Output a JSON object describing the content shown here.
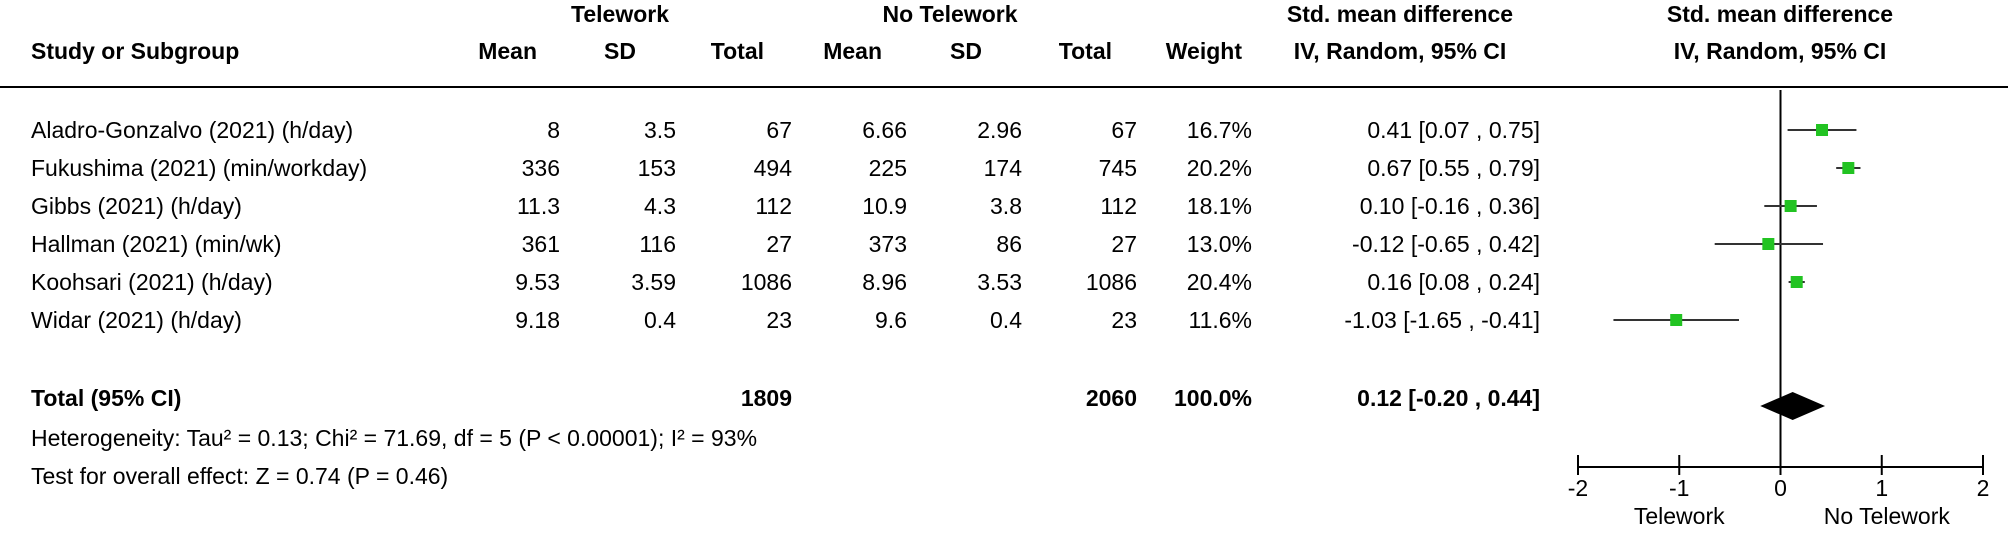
{
  "header": {
    "group1": "Telework",
    "group2": "No Telework",
    "col_study": "Study or Subgroup",
    "col_mean1": "Mean",
    "col_sd1": "SD",
    "col_total1": "Total",
    "col_mean2": "Mean",
    "col_sd2": "SD",
    "col_total2": "Total",
    "col_weight": "Weight",
    "effect_title": "Std. mean difference",
    "effect_method": "IV, Random, 95% CI",
    "plot_title": "Std. mean difference",
    "plot_method": "IV, Random, 95% CI"
  },
  "rows": [
    {
      "study": "Aladro-Gonzalvo (2021) (h/day)",
      "mean1": "8",
      "sd1": "3.5",
      "total1": "67",
      "mean2": "6.66",
      "sd2": "2.96",
      "total2": "67",
      "weight": "16.7%",
      "ci_text": "0.41 [0.07 , 0.75]"
    },
    {
      "study": "Fukushima (2021) (min/workday)",
      "mean1": "336",
      "sd1": "153",
      "total1": "494",
      "mean2": "225",
      "sd2": "174",
      "total2": "745",
      "weight": "20.2%",
      "ci_text": "0.67 [0.55 , 0.79]"
    },
    {
      "study": "Gibbs (2021) (h/day)",
      "mean1": "11.3",
      "sd1": "4.3",
      "total1": "112",
      "mean2": "10.9",
      "sd2": "3.8",
      "total2": "112",
      "weight": "18.1%",
      "ci_text": "0.10 [-0.16 , 0.36]"
    },
    {
      "study": "Hallman (2021) (min/wk)",
      "mean1": "361",
      "sd1": "116",
      "total1": "27",
      "mean2": "373",
      "sd2": "86",
      "total2": "27",
      "weight": "13.0%",
      "ci_text": "-0.12 [-0.65 , 0.42]"
    },
    {
      "study": "Koohsari (2021) (h/day)",
      "mean1": "9.53",
      "sd1": "3.59",
      "total1": "1086",
      "mean2": "8.96",
      "sd2": "3.53",
      "total2": "1086",
      "weight": "20.4%",
      "ci_text": "0.16 [0.08 , 0.24]"
    },
    {
      "study": "Widar (2021) (h/day)",
      "mean1": "9.18",
      "sd1": "0.4",
      "total1": "23",
      "mean2": "9.6",
      "sd2": "0.4",
      "total2": "23",
      "weight": "11.6%",
      "ci_text": "-1.03 [-1.65 , -0.41]"
    }
  ],
  "total": {
    "label": "Total (95% CI)",
    "total1": "1809",
    "total2": "2060",
    "weight": "100.0%",
    "ci_text": "0.12 [-0.20 , 0.44]"
  },
  "heterogeneity": "Heterogeneity: Tau² = 0.13; Chi² = 71.69, df = 5 (P < 0.00001); I² = 93%",
  "overall_effect": "Test for overall effect: Z = 0.74 (P = 0.46)",
  "colors": {
    "marker": "#22c322",
    "line": "#333333",
    "diamond": "#000000"
  },
  "chart_data": {
    "type": "scatter",
    "subtype": "forest-plot",
    "title": "Std. mean difference",
    "subtitle": "IV, Random, 95% CI",
    "xlim": [
      -2,
      2
    ],
    "x_ticks": [
      "-2",
      "-1",
      "0",
      "1",
      "2"
    ],
    "x_tick_values": [
      -2,
      -1,
      0,
      1,
      2
    ],
    "left_label": "Telework",
    "right_label": "No Telework",
    "studies": [
      {
        "study": "Aladro-Gonzalvo (2021) (h/day)",
        "smd": 0.41,
        "lower": 0.07,
        "upper": 0.75,
        "weight": 16.7
      },
      {
        "study": "Fukushima (2021) (min/workday)",
        "smd": 0.67,
        "lower": 0.55,
        "upper": 0.79,
        "weight": 20.2
      },
      {
        "study": "Gibbs (2021) (h/day)",
        "smd": 0.1,
        "lower": -0.16,
        "upper": 0.36,
        "weight": 18.1
      },
      {
        "study": "Hallman (2021) (min/wk)",
        "smd": -0.12,
        "lower": -0.65,
        "upper": 0.42,
        "weight": 13.0
      },
      {
        "study": "Koohsari (2021) (h/day)",
        "smd": 0.16,
        "lower": 0.08,
        "upper": 0.24,
        "weight": 20.4
      },
      {
        "study": "Widar (2021) (h/day)",
        "smd": -1.03,
        "lower": -1.65,
        "upper": -0.41,
        "weight": 11.6
      }
    ],
    "pooled": {
      "smd": 0.12,
      "lower": -0.2,
      "upper": 0.44,
      "weight": 100.0
    }
  }
}
